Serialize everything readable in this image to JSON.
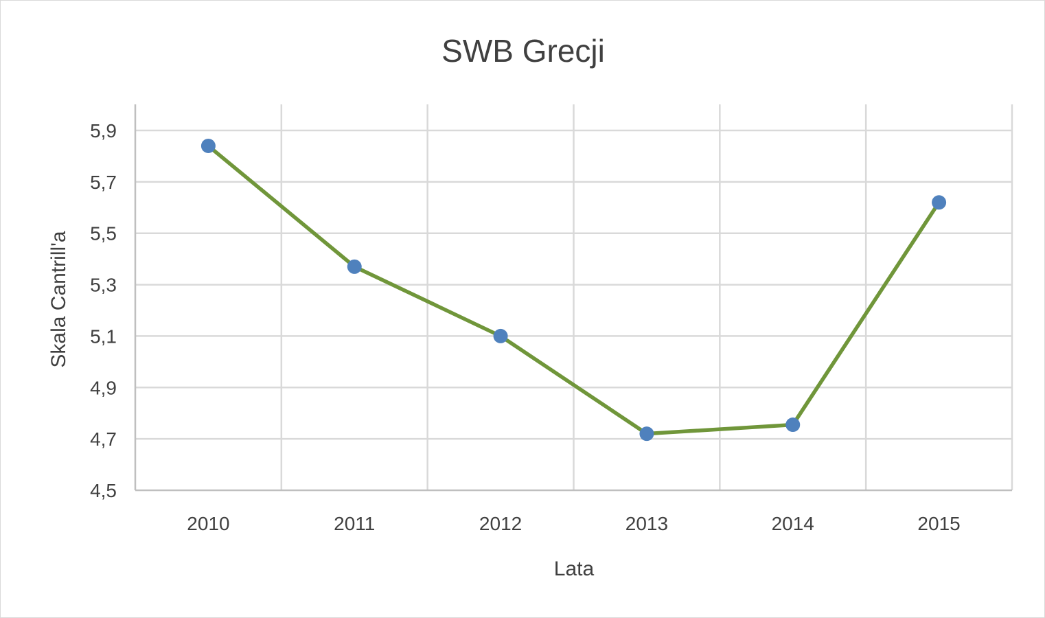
{
  "chart_data": {
    "type": "line",
    "title": "SWB Grecji",
    "xlabel": "Lata",
    "ylabel": "Skala Cantrill'a",
    "categories": [
      "2010",
      "2011",
      "2012",
      "2013",
      "2014",
      "2015"
    ],
    "series": [
      {
        "values": [
          5.84,
          5.37,
          5.1,
          4.72,
          4.755,
          5.62
        ]
      }
    ],
    "ylim": [
      4.5,
      5.9
    ],
    "yticks": [
      "4,5",
      "4,7",
      "4,9",
      "5,1",
      "5,3",
      "5,5",
      "5,7",
      "5,9"
    ],
    "grid": true,
    "legend": "none",
    "colors": {
      "line": "#70963a",
      "marker": "#4f81bd"
    }
  }
}
